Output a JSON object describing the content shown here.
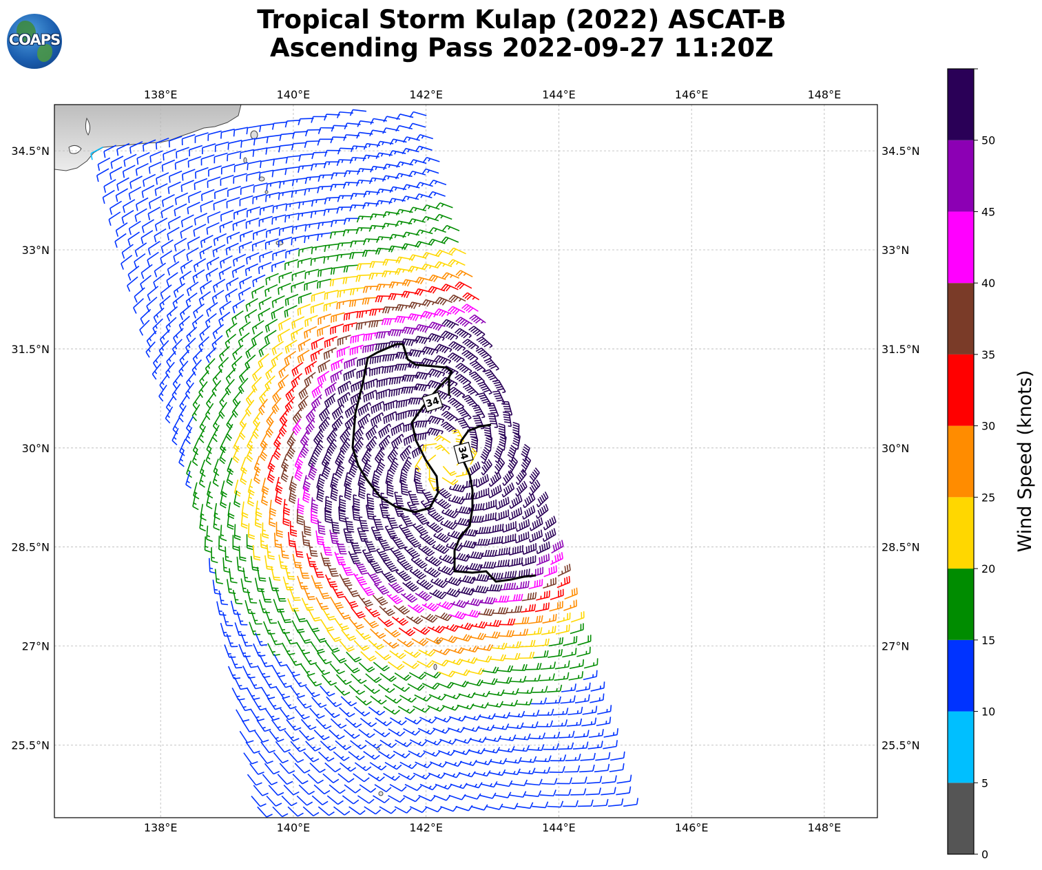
{
  "header": {
    "title_line1": "Tropical Storm Kulap (2022) ASCAT-B",
    "title_line2": "Ascending Pass 2022-09-27 11:20Z",
    "logo_text": "COAPS"
  },
  "map": {
    "lon_range": [
      136.4,
      148.8
    ],
    "lat_range": [
      24.4,
      35.2
    ],
    "lon_ticks": [
      "138°E",
      "140°E",
      "142°E",
      "144°E",
      "146°E",
      "148°E"
    ],
    "lat_ticks": [
      "34.5°N",
      "33°N",
      "31.5°N",
      "30°N",
      "28.5°N",
      "27°N",
      "25.5°N"
    ],
    "storm_center": [
      142.3,
      29.8
    ],
    "contour_label": "34",
    "contour_labels": [
      "34",
      "34"
    ]
  },
  "colorbar": {
    "label": "Wind Speed (knots)",
    "tick_labels": [
      "0",
      "5",
      "10",
      "15",
      "20",
      "25",
      "30",
      "35",
      "40",
      "45",
      "50"
    ],
    "bins": [
      {
        "min": 0,
        "max": 5,
        "color": "#555555"
      },
      {
        "min": 5,
        "max": 10,
        "color": "#00bfff"
      },
      {
        "min": 10,
        "max": 15,
        "color": "#0033ff"
      },
      {
        "min": 15,
        "max": 20,
        "color": "#008c00"
      },
      {
        "min": 20,
        "max": 25,
        "color": "#ffd700"
      },
      {
        "min": 25,
        "max": 30,
        "color": "#ff8c00"
      },
      {
        "min": 30,
        "max": 35,
        "color": "#ff0000"
      },
      {
        "min": 35,
        "max": 40,
        "color": "#7a3b28"
      },
      {
        "min": 40,
        "max": 45,
        "color": "#ff00ff"
      },
      {
        "min": 45,
        "max": 50,
        "color": "#8c00b4"
      },
      {
        "min": 50,
        "max": 55,
        "color": "#2a0057"
      }
    ]
  }
}
